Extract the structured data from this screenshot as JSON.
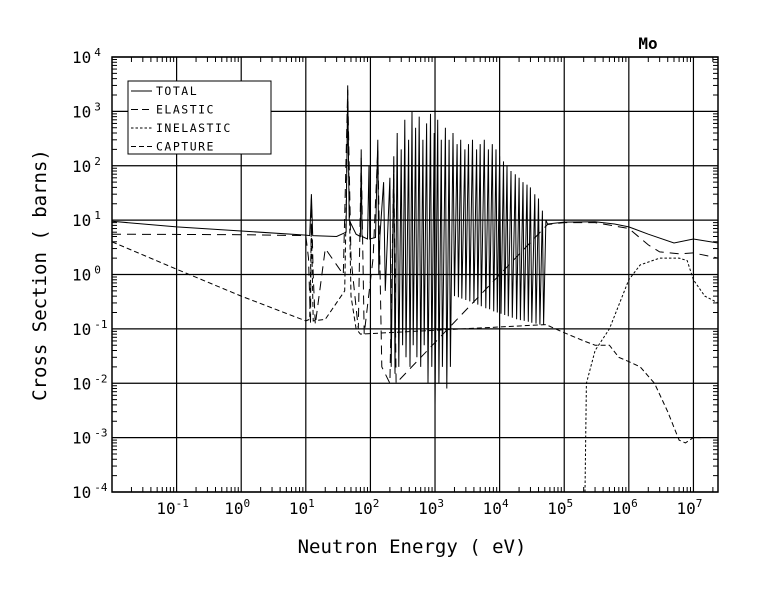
{
  "chart_data": {
    "type": "line",
    "title": "Mo",
    "xlabel": "Neutron Energy ( eV)",
    "ylabel": "Cross Section ( barns)",
    "xscale": "log",
    "yscale": "log",
    "xlim": [
      0.01,
      24000000
    ],
    "ylim": [
      0.0001,
      10000
    ],
    "grid": true,
    "legend_position": "top-left",
    "x_ticks": [
      {
        "base": "10",
        "exp": "-1",
        "value": 0.1
      },
      {
        "base": "10",
        "exp": "0",
        "value": 1
      },
      {
        "base": "10",
        "exp": "1",
        "value": 10
      },
      {
        "base": "10",
        "exp": "2",
        "value": 100
      },
      {
        "base": "10",
        "exp": "3",
        "value": 1000
      },
      {
        "base": "10",
        "exp": "4",
        "value": 10000
      },
      {
        "base": "10",
        "exp": "5",
        "value": 100000
      },
      {
        "base": "10",
        "exp": "6",
        "value": 1000000
      },
      {
        "base": "10",
        "exp": "7",
        "value": 10000000
      }
    ],
    "y_ticks": [
      {
        "base": "10",
        "exp": "4",
        "value": 10000
      },
      {
        "base": "10",
        "exp": "3",
        "value": 1000
      },
      {
        "base": "10",
        "exp": "2",
        "value": 100
      },
      {
        "base": "10",
        "exp": "1",
        "value": 10
      },
      {
        "base": "10",
        "exp": "0",
        "value": 1
      },
      {
        "base": "10",
        "exp": "-1",
        "value": 0.1
      },
      {
        "base": "10",
        "exp": "-2",
        "value": 0.01
      },
      {
        "base": "10",
        "exp": "-3",
        "value": 0.001
      },
      {
        "base": "10",
        "exp": "-4",
        "value": 0.0001
      }
    ],
    "series": [
      {
        "name": "TOTAL",
        "style": "solid",
        "points": [
          [
            0.01,
            9.5
          ],
          [
            0.1,
            7.5
          ],
          [
            1,
            6.3
          ],
          [
            10,
            5.3
          ],
          [
            11.5,
            5.2
          ],
          [
            12.2,
            30
          ],
          [
            12.8,
            5.2
          ],
          [
            30,
            5.0
          ],
          [
            42,
            6
          ],
          [
            44.5,
            3000
          ],
          [
            47,
            10
          ],
          [
            60,
            5.5
          ],
          [
            70,
            5
          ],
          [
            72,
            200
          ],
          [
            74,
            5
          ],
          [
            90,
            4.5
          ],
          [
            95,
            100
          ],
          [
            98,
            4.5
          ],
          [
            120,
            4.8
          ],
          [
            130,
            300
          ],
          [
            135,
            1
          ],
          [
            140,
            5
          ],
          [
            160,
            50
          ],
          [
            170,
            0.5
          ],
          [
            200,
            60
          ],
          [
            210,
            0.02
          ],
          [
            230,
            150
          ],
          [
            240,
            0.015
          ],
          [
            260,
            400
          ],
          [
            275,
            0.02
          ],
          [
            300,
            200
          ],
          [
            315,
            0.05
          ],
          [
            340,
            700
          ],
          [
            355,
            0.03
          ],
          [
            390,
            300
          ],
          [
            410,
            0.02
          ],
          [
            440,
            1000
          ],
          [
            460,
            0.05
          ],
          [
            500,
            500
          ],
          [
            525,
            0.03
          ],
          [
            570,
            800
          ],
          [
            600,
            0.02
          ],
          [
            650,
            300
          ],
          [
            680,
            0.05
          ],
          [
            740,
            600
          ],
          [
            780,
            0.01
          ],
          [
            850,
            900
          ],
          [
            890,
            0.02
          ],
          [
            970,
            400
          ],
          [
            1000,
            0.004
          ],
          [
            1100,
            700
          ],
          [
            1150,
            0.01
          ],
          [
            1250,
            300
          ],
          [
            1300,
            0.02
          ],
          [
            1450,
            500
          ],
          [
            1520,
            0.008
          ],
          [
            1650,
            300
          ],
          [
            1730,
            0.02
          ],
          [
            1900,
            400
          ],
          [
            2000,
            0.4
          ],
          [
            2200,
            250
          ],
          [
            2300,
            0.38
          ],
          [
            2500,
            300
          ],
          [
            2600,
            0.36
          ],
          [
            2900,
            200
          ],
          [
            3000,
            0.34
          ],
          [
            3300,
            250
          ],
          [
            3450,
            0.32
          ],
          [
            3800,
            300
          ],
          [
            4000,
            0.3
          ],
          [
            4400,
            200
          ],
          [
            4600,
            0.28
          ],
          [
            5000,
            250
          ],
          [
            5200,
            0.26
          ],
          [
            5800,
            300
          ],
          [
            6100,
            0.24
          ],
          [
            6700,
            200
          ],
          [
            7000,
            0.23
          ],
          [
            7700,
            250
          ],
          [
            8100,
            0.21
          ],
          [
            8800,
            200
          ],
          [
            9200,
            0.2
          ],
          [
            10000,
            150
          ],
          [
            10500,
            0.19
          ],
          [
            11500,
            120
          ],
          [
            12000,
            0.18
          ],
          [
            13000,
            100
          ],
          [
            13600,
            0.17
          ],
          [
            15000,
            80
          ],
          [
            15700,
            0.16
          ],
          [
            17500,
            70
          ],
          [
            18300,
            0.15
          ],
          [
            20000,
            60
          ],
          [
            21000,
            0.145
          ],
          [
            23000,
            50
          ],
          [
            24000,
            0.14
          ],
          [
            26500,
            45
          ],
          [
            27800,
            0.135
          ],
          [
            30000,
            40
          ],
          [
            31500,
            0.13
          ],
          [
            35000,
            30
          ],
          [
            36500,
            0.125
          ],
          [
            40000,
            25
          ],
          [
            42000,
            0.12
          ],
          [
            46000,
            15
          ],
          [
            48000,
            0.12
          ],
          [
            52000,
            10
          ],
          [
            55000,
            8.5
          ],
          [
            100000,
            9.2
          ],
          [
            300000,
            9.3
          ],
          [
            600000,
            8.5
          ],
          [
            1000000,
            7.5
          ],
          [
            2000000,
            5.5
          ],
          [
            5000000,
            3.8
          ],
          [
            10000000,
            4.5
          ],
          [
            24000000,
            3.8
          ]
        ]
      },
      {
        "name": "ELASTIC",
        "style": "dashed",
        "points": [
          [
            0.01,
            5.5
          ],
          [
            1,
            5.4
          ],
          [
            10,
            5.2
          ],
          [
            11,
            2
          ],
          [
            11.8,
            0.12
          ],
          [
            12.2,
            25
          ],
          [
            13,
            1
          ],
          [
            14,
            0.12
          ],
          [
            20,
            3
          ],
          [
            38,
            1
          ],
          [
            44.5,
            2500
          ],
          [
            50,
            2
          ],
          [
            65,
            0.1
          ],
          [
            72,
            150
          ],
          [
            80,
            0.08
          ],
          [
            110,
            2
          ],
          [
            130,
            200
          ],
          [
            150,
            0.02
          ],
          [
            200,
            0.01
          ],
          [
            230,
            100
          ],
          [
            250,
            0.01
          ],
          [
            55000,
            8.3
          ],
          [
            100000,
            9
          ],
          [
            300000,
            9
          ],
          [
            1000000,
            7
          ],
          [
            2000000,
            3.5
          ],
          [
            3000000,
            2.6
          ],
          [
            6000000,
            2.4
          ],
          [
            10000000,
            2.5
          ],
          [
            24000000,
            2.0
          ]
        ]
      },
      {
        "name": "INELASTIC",
        "style": "dotted",
        "points": [
          [
            210000,
            0.0001
          ],
          [
            220000,
            0.01
          ],
          [
            300000,
            0.04
          ],
          [
            500000,
            0.1
          ],
          [
            1000000,
            0.8
          ],
          [
            1500000,
            1.5
          ],
          [
            3000000,
            2
          ],
          [
            6000000,
            2
          ],
          [
            8000000,
            1.8
          ],
          [
            10000000,
            0.8
          ],
          [
            15000000,
            0.4
          ],
          [
            24000000,
            0.3
          ]
        ]
      },
      {
        "name": "CAPTURE",
        "style": "dash",
        "points": [
          [
            0.01,
            4
          ],
          [
            0.1,
            1.25
          ],
          [
            1,
            0.4
          ],
          [
            10,
            0.14
          ],
          [
            11.5,
            0.15
          ],
          [
            12.2,
            8
          ],
          [
            13,
            0.14
          ],
          [
            20,
            0.15
          ],
          [
            40,
            0.5
          ],
          [
            44.5,
            800
          ],
          [
            50,
            0.4
          ],
          [
            60,
            0.1
          ],
          [
            70,
            0.08
          ],
          [
            52000,
            0.12
          ],
          [
            100000,
            0.085
          ],
          [
            200000,
            0.06
          ],
          [
            300000,
            0.05
          ],
          [
            500000,
            0.05
          ],
          [
            700000,
            0.03
          ],
          [
            1000000,
            0.025
          ],
          [
            1500000,
            0.02
          ],
          [
            2500000,
            0.01
          ],
          [
            4000000,
            0.003
          ],
          [
            6000000,
            0.0009
          ],
          [
            7500000,
            0.0008
          ],
          [
            10000000,
            0.001
          ],
          [
            13000000,
            0.001
          ]
        ]
      }
    ]
  }
}
